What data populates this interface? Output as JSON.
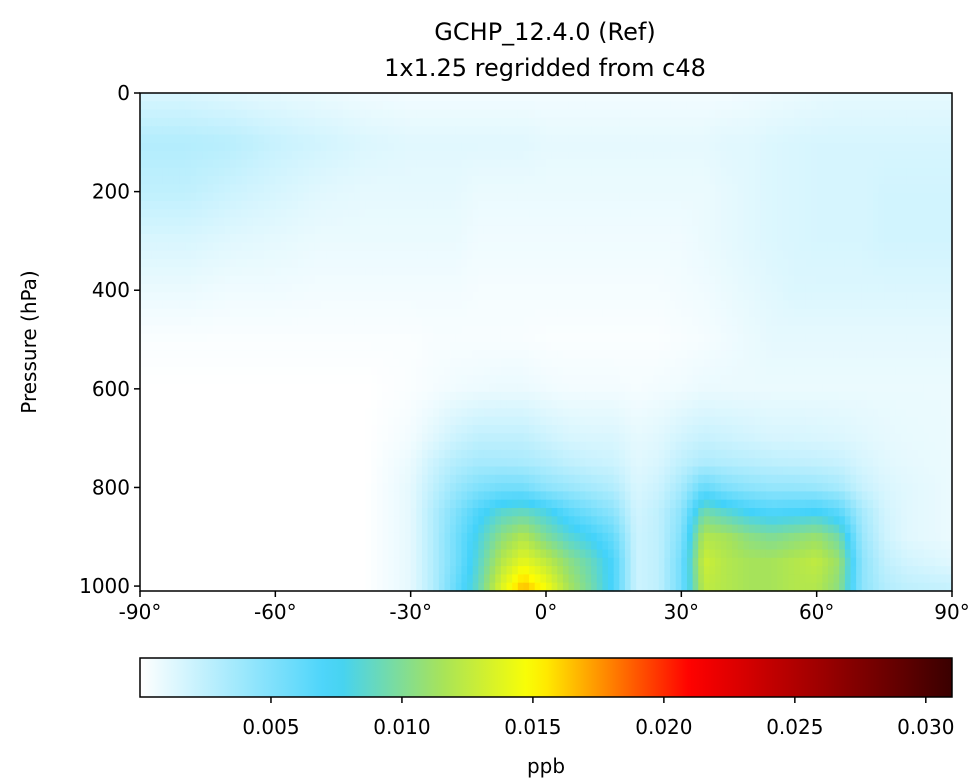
{
  "chart_data": {
    "type": "heatmap",
    "title": "GCHP_12.4.0 (Ref)",
    "subtitle": "1x1.25 regridded from c48",
    "xlabel": "",
    "ylabel": "Pressure (hPa)",
    "xlim": [
      -90,
      90
    ],
    "ylim": [
      1010,
      0
    ],
    "x_ticks": [
      -90,
      -60,
      -30,
      0,
      30,
      60,
      90
    ],
    "x_tick_labels": [
      "-90°",
      "-60°",
      "-30°",
      "0°",
      "30°",
      "60°",
      "90°"
    ],
    "y_ticks": [
      0,
      200,
      400,
      600,
      800,
      1000
    ],
    "y_tick_labels": [
      "0",
      "200",
      "400",
      "600",
      "800",
      "1000"
    ],
    "colorbar": {
      "label": "ppb",
      "range": [
        0.0,
        0.031
      ],
      "ticks": [
        0.005,
        0.01,
        0.015,
        0.02,
        0.025,
        0.03
      ],
      "tick_labels": [
        "0.005",
        "0.010",
        "0.015",
        "0.020",
        "0.025",
        "0.030"
      ],
      "colormap_stops": [
        {
          "value": 0.0,
          "color": "#ffffff"
        },
        {
          "value": 0.0075,
          "color": "#41d2fa"
        },
        {
          "value": 0.0115,
          "color": "#a6e35a"
        },
        {
          "value": 0.015,
          "color": "#ffff00"
        },
        {
          "value": 0.021,
          "color": "#ff0000"
        },
        {
          "value": 0.031,
          "color": "#3a0000"
        }
      ]
    },
    "latitudes": [
      -90,
      -80,
      -70,
      -60,
      -50,
      -40,
      -30,
      -25,
      -20,
      -15,
      -10,
      -5,
      0,
      5,
      10,
      15,
      20,
      25,
      30,
      35,
      40,
      45,
      50,
      55,
      60,
      65,
      70,
      75,
      80,
      90
    ],
    "pressure_levels": [
      0,
      100,
      200,
      300,
      400,
      500,
      600,
      700,
      750,
      800,
      850,
      900,
      950,
      1000
    ],
    "values": [
      [
        0.0015,
        0.0015,
        0.0012,
        0.001,
        0.0008,
        0.0006,
        0.0005,
        0.0005,
        0.0005,
        0.0005,
        0.0005,
        0.0005,
        0.0005,
        0.0005,
        0.0005,
        0.0005,
        0.0005,
        0.0005,
        0.0005,
        0.0005,
        0.0005,
        0.0006,
        0.0007,
        0.0008,
        0.0009,
        0.001,
        0.001,
        0.001,
        0.001,
        0.001
      ],
      [
        0.003,
        0.003,
        0.0028,
        0.0022,
        0.0018,
        0.0014,
        0.0012,
        0.0012,
        0.0012,
        0.0012,
        0.0012,
        0.0012,
        0.001,
        0.001,
        0.001,
        0.001,
        0.001,
        0.001,
        0.001,
        0.001,
        0.0012,
        0.0012,
        0.0014,
        0.0015,
        0.0016,
        0.0016,
        0.0016,
        0.0016,
        0.0016,
        0.0016
      ],
      [
        0.0025,
        0.0025,
        0.002,
        0.0016,
        0.0012,
        0.001,
        0.001,
        0.001,
        0.001,
        0.0008,
        0.0008,
        0.0008,
        0.0008,
        0.0008,
        0.0008,
        0.0008,
        0.0008,
        0.0008,
        0.0008,
        0.0008,
        0.001,
        0.0012,
        0.0014,
        0.0015,
        0.0016,
        0.0016,
        0.0016,
        0.0018,
        0.0018,
        0.0018
      ],
      [
        0.0015,
        0.0015,
        0.0012,
        0.001,
        0.0008,
        0.0008,
        0.0008,
        0.0008,
        0.0008,
        0.0006,
        0.0006,
        0.0006,
        0.0006,
        0.0006,
        0.0006,
        0.0006,
        0.0006,
        0.0006,
        0.0006,
        0.0008,
        0.001,
        0.0012,
        0.0014,
        0.0015,
        0.0016,
        0.0016,
        0.0016,
        0.0018,
        0.0018,
        0.0018
      ],
      [
        0.0008,
        0.0008,
        0.0006,
        0.0006,
        0.0005,
        0.0005,
        0.0005,
        0.0005,
        0.0005,
        0.0004,
        0.0004,
        0.0004,
        0.0004,
        0.0004,
        0.0004,
        0.0004,
        0.0004,
        0.0004,
        0.0005,
        0.0006,
        0.0008,
        0.001,
        0.0012,
        0.0014,
        0.0014,
        0.0014,
        0.0014,
        0.0014,
        0.0014,
        0.0014
      ],
      [
        0.0002,
        0.0002,
        0.0002,
        0.0002,
        0.0002,
        0.0002,
        0.0002,
        0.0003,
        0.0003,
        0.0003,
        0.0003,
        0.0003,
        0.0002,
        0.0002,
        0.0002,
        0.0002,
        0.0002,
        0.0002,
        0.0003,
        0.0004,
        0.0006,
        0.0008,
        0.001,
        0.001,
        0.001,
        0.001,
        0.001,
        0.001,
        0.001,
        0.001
      ],
      [
        0.0,
        0.0,
        0.0,
        0.0,
        0.0,
        0.0,
        0.0002,
        0.0004,
        0.0006,
        0.0007,
        0.0008,
        0.0008,
        0.0006,
        0.0005,
        0.0005,
        0.0005,
        0.0004,
        0.0005,
        0.0006,
        0.0008,
        0.0008,
        0.0008,
        0.0008,
        0.0008,
        0.0008,
        0.0008,
        0.0008,
        0.0008,
        0.0008,
        0.0008
      ],
      [
        0.0,
        0.0,
        0.0,
        0.0,
        0.0,
        0.0,
        0.0005,
        0.0012,
        0.002,
        0.0025,
        0.0025,
        0.0025,
        0.002,
        0.0016,
        0.0015,
        0.0015,
        0.001,
        0.0012,
        0.0018,
        0.0022,
        0.002,
        0.0018,
        0.0016,
        0.0016,
        0.0015,
        0.0014,
        0.0012,
        0.001,
        0.0009,
        0.0008
      ],
      [
        0.0,
        0.0,
        0.0,
        0.0,
        0.0,
        0.0,
        0.0008,
        0.002,
        0.003,
        0.0035,
        0.0035,
        0.0034,
        0.003,
        0.0025,
        0.0022,
        0.002,
        0.0012,
        0.0015,
        0.0025,
        0.0032,
        0.003,
        0.0028,
        0.0026,
        0.0025,
        0.0024,
        0.0022,
        0.0016,
        0.0012,
        0.001,
        0.0008
      ],
      [
        0.0,
        0.0,
        0.0,
        0.0,
        0.0,
        0.0,
        0.001,
        0.0025,
        0.004,
        0.005,
        0.0055,
        0.0055,
        0.0045,
        0.004,
        0.0035,
        0.003,
        0.0015,
        0.002,
        0.0035,
        0.006,
        0.005,
        0.0045,
        0.0042,
        0.0042,
        0.004,
        0.0035,
        0.0022,
        0.0015,
        0.0012,
        0.0008
      ],
      [
        0.0,
        0.0,
        0.0,
        0.0,
        0.0,
        0.0,
        0.001,
        0.003,
        0.005,
        0.007,
        0.0085,
        0.009,
        0.008,
        0.0065,
        0.0055,
        0.0045,
        0.0018,
        0.0025,
        0.0045,
        0.0095,
        0.0085,
        0.0075,
        0.007,
        0.0072,
        0.0075,
        0.0065,
        0.0035,
        0.0018,
        0.0012,
        0.0008
      ],
      [
        0.0,
        0.0,
        0.0,
        0.0,
        0.0,
        0.0,
        0.001,
        0.003,
        0.0055,
        0.008,
        0.0105,
        0.012,
        0.01,
        0.0085,
        0.0075,
        0.006,
        0.002,
        0.0025,
        0.005,
        0.012,
        0.0115,
        0.0105,
        0.01,
        0.0105,
        0.011,
        0.0095,
        0.004,
        0.002,
        0.0012,
        0.0008
      ],
      [
        0.0,
        0.0,
        0.0,
        0.0,
        0.0,
        0.0,
        0.001,
        0.003,
        0.0055,
        0.0085,
        0.012,
        0.014,
        0.0125,
        0.0105,
        0.009,
        0.007,
        0.002,
        0.0025,
        0.0055,
        0.013,
        0.012,
        0.0115,
        0.0115,
        0.012,
        0.0125,
        0.011,
        0.0045,
        0.0025,
        0.0018,
        0.0012
      ],
      [
        0.0,
        0.0,
        0.0,
        0.0,
        0.0,
        0.0,
        0.001,
        0.003,
        0.006,
        0.009,
        0.0135,
        0.0165,
        0.0145,
        0.0115,
        0.0095,
        0.007,
        0.002,
        0.0025,
        0.0055,
        0.0125,
        0.012,
        0.0115,
        0.0115,
        0.012,
        0.012,
        0.0105,
        0.0045,
        0.003,
        0.0025,
        0.0022
      ]
    ]
  }
}
